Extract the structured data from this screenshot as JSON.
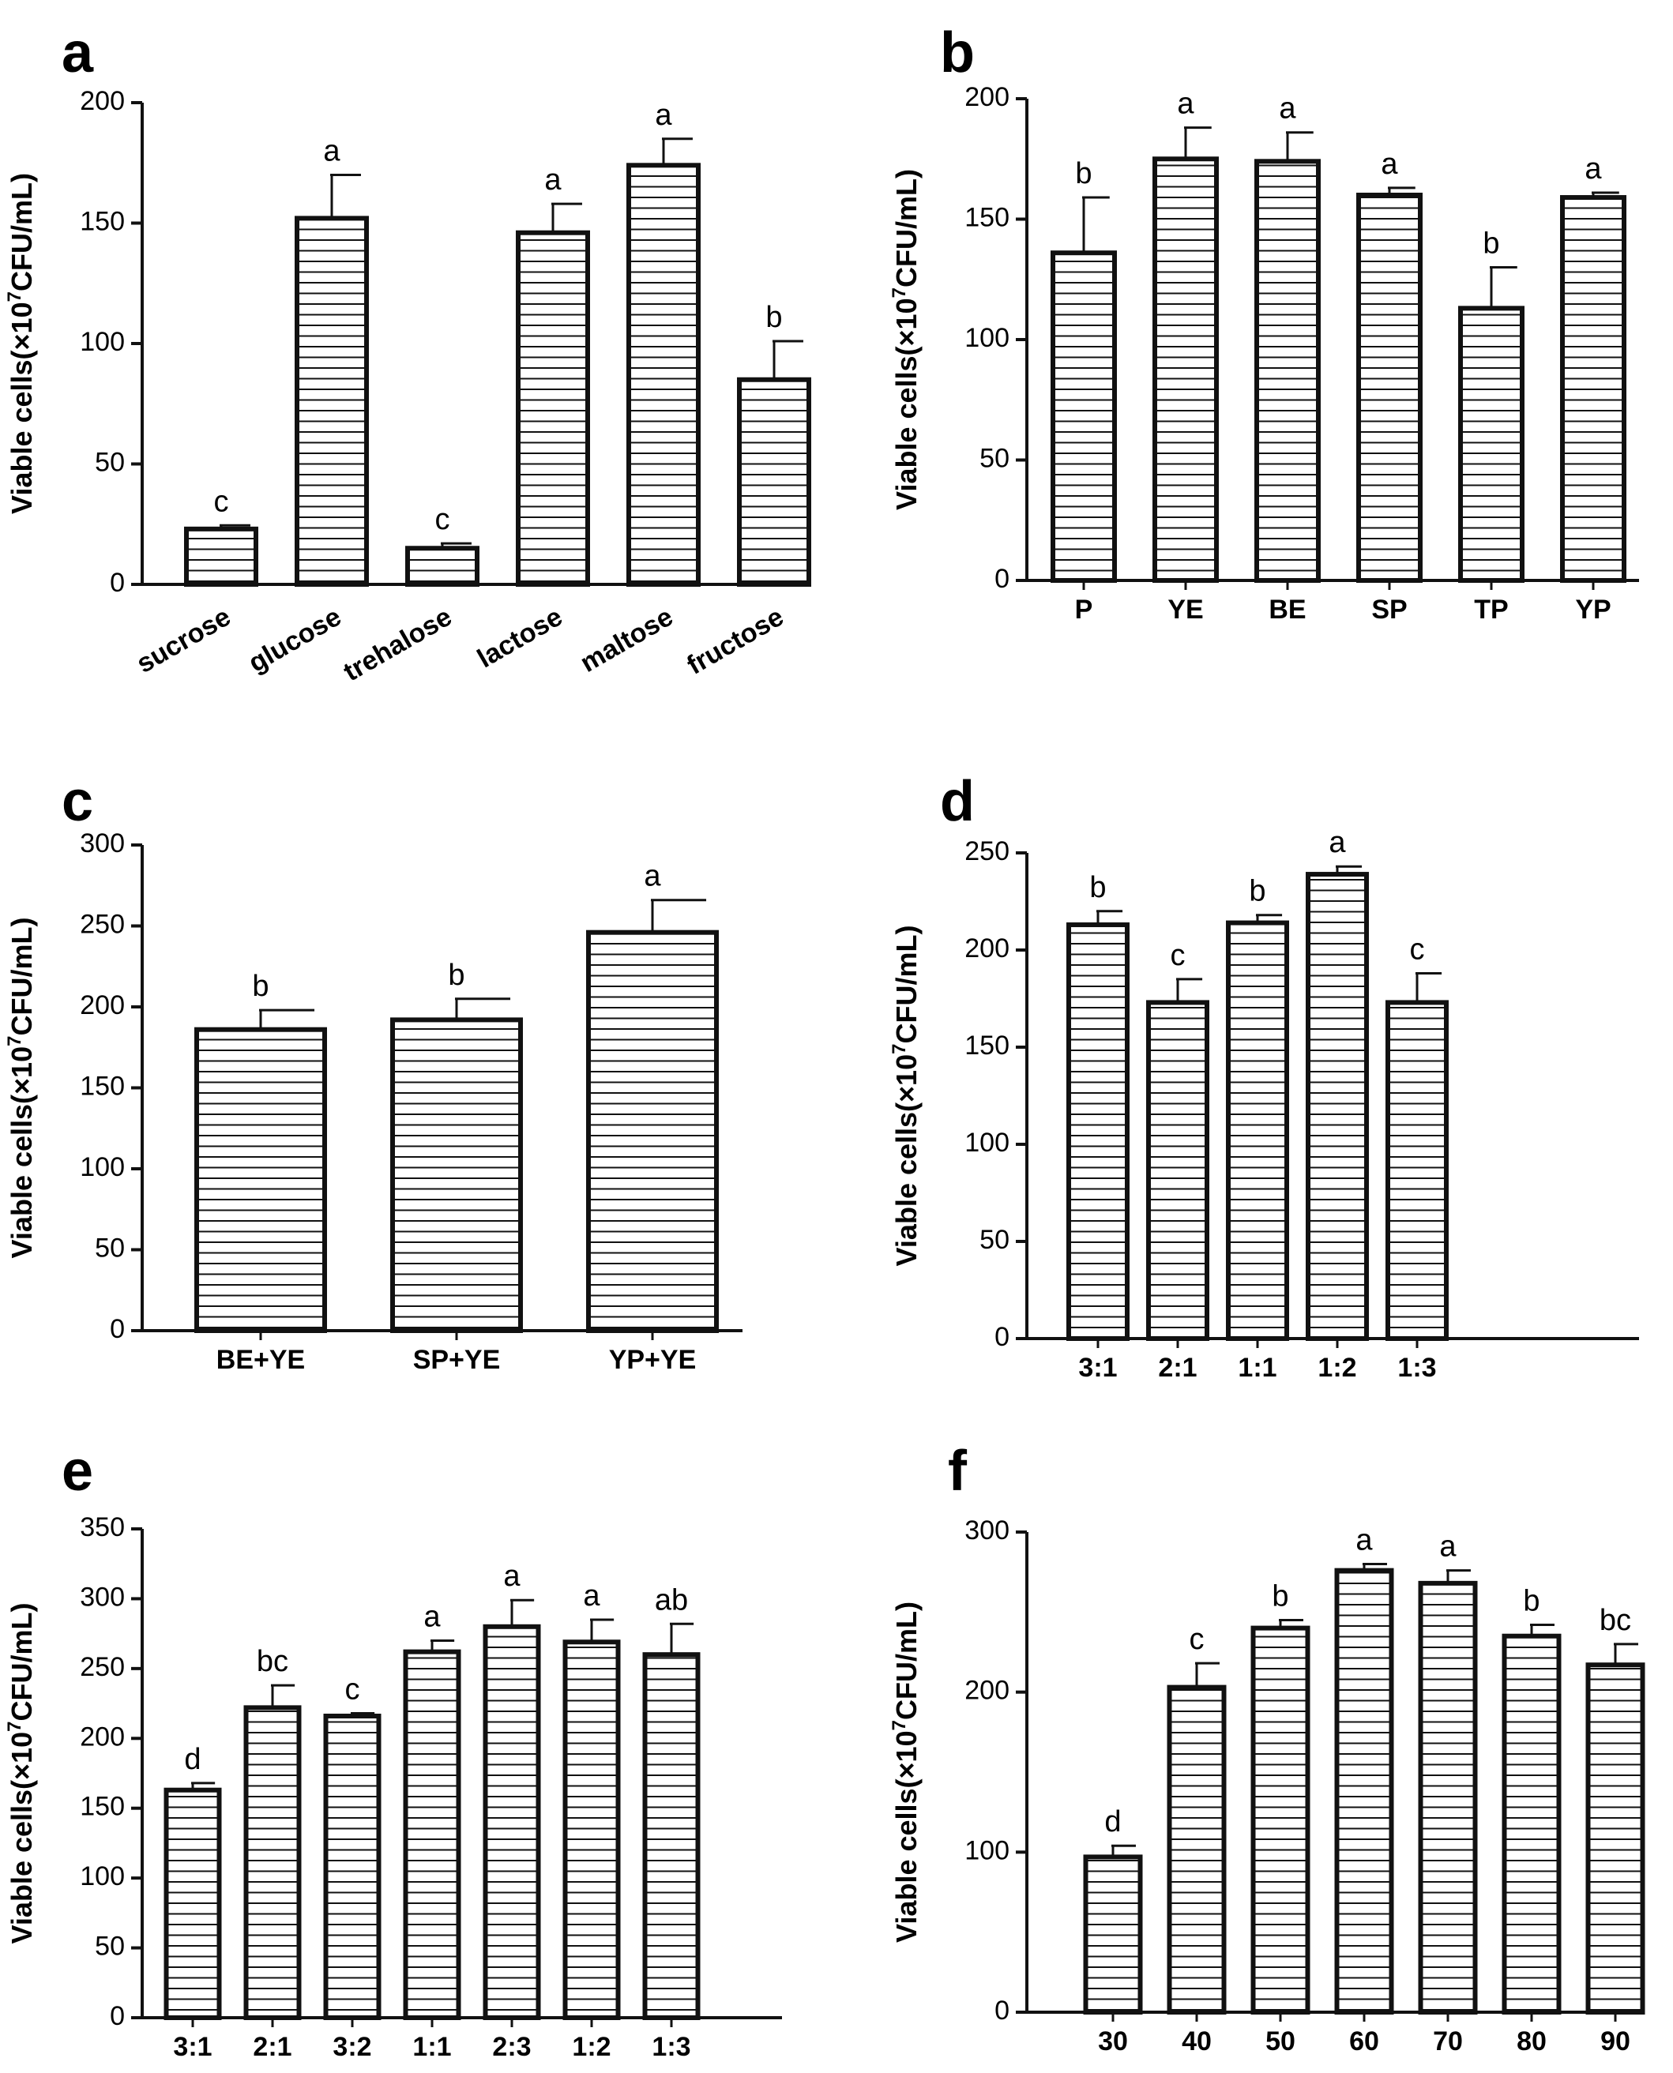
{
  "chart_data": [
    {
      "panel": "a",
      "type": "bar",
      "ylabel": "Viable cells(×10^7CFU/mL)",
      "ylim": [
        0,
        200
      ],
      "yticks": [
        0,
        50,
        100,
        150,
        200
      ],
      "categories": [
        "sucrose",
        "glucose",
        "trehalose",
        "lactose",
        "maltose",
        "fructose"
      ],
      "values": [
        23,
        152,
        15,
        146,
        174,
        85
      ],
      "errors": [
        1.5,
        18,
        2,
        12,
        11,
        16
      ],
      "significance": [
        "c",
        "a",
        "c",
        "a",
        "a",
        "b"
      ],
      "xlabel_rotation": -30
    },
    {
      "panel": "b",
      "type": "bar",
      "ylabel": "Viable cells(×10^7CFU/mL)",
      "ylim": [
        0,
        200
      ],
      "yticks": [
        0,
        50,
        100,
        150,
        200
      ],
      "categories": [
        "P",
        "YE",
        "BE",
        "SP",
        "TP",
        "YP"
      ],
      "values": [
        136,
        175,
        174,
        160,
        113,
        159
      ],
      "errors": [
        23,
        13,
        12,
        3,
        17,
        2
      ],
      "significance": [
        "b",
        "a",
        "a",
        "a",
        "b",
        "a"
      ]
    },
    {
      "panel": "c",
      "type": "bar",
      "ylabel": "Viable cells(×10^7CFU/mL)",
      "ylim": [
        0,
        300
      ],
      "yticks": [
        0,
        50,
        100,
        150,
        200,
        250,
        300
      ],
      "categories": [
        "BE+YE",
        "SP+YE",
        "YP+YE"
      ],
      "values": [
        186,
        192,
        246
      ],
      "errors": [
        12,
        13,
        20
      ],
      "significance": [
        "b",
        "b",
        "a"
      ]
    },
    {
      "panel": "d",
      "type": "bar",
      "ylabel": "Viable cells(×10^7CFU/mL)",
      "ylim": [
        0,
        250
      ],
      "yticks": [
        0,
        50,
        100,
        150,
        200,
        250
      ],
      "categories": [
        "3:1",
        "2:1",
        "1:1",
        "1:2",
        "1:3"
      ],
      "values": [
        213,
        173,
        214,
        239,
        173
      ],
      "errors": [
        7,
        12,
        4,
        4,
        15
      ],
      "significance": [
        "b",
        "c",
        "b",
        "a",
        "c"
      ]
    },
    {
      "panel": "e",
      "type": "bar",
      "ylabel": "Viable cells(×10^7CFU/mL)",
      "ylim": [
        0,
        350
      ],
      "yticks": [
        0,
        50,
        100,
        150,
        200,
        250,
        300,
        350
      ],
      "categories": [
        "3:1",
        "2:1",
        "3:2",
        "1:1",
        "2:3",
        "1:2",
        "1:3"
      ],
      "values": [
        163,
        222,
        216,
        262,
        280,
        269,
        260
      ],
      "errors": [
        5,
        16,
        2,
        8,
        19,
        16,
        22
      ],
      "significance": [
        "d",
        "bc",
        "c",
        "a",
        "a",
        "a",
        "ab"
      ]
    },
    {
      "panel": "f",
      "type": "bar",
      "ylabel": "Viable cells(×10^7CFU/mL)",
      "ylim": [
        0,
        300
      ],
      "yticks": [
        0,
        100,
        200,
        300
      ],
      "categories": [
        "30",
        "40",
        "50",
        "60",
        "70",
        "80",
        "90"
      ],
      "values": [
        97,
        203,
        240,
        276,
        268,
        235,
        217
      ],
      "errors": [
        7,
        15,
        5,
        4,
        8,
        7,
        13
      ],
      "significance": [
        "d",
        "c",
        "b",
        "a",
        "a",
        "b",
        "bc"
      ]
    }
  ]
}
